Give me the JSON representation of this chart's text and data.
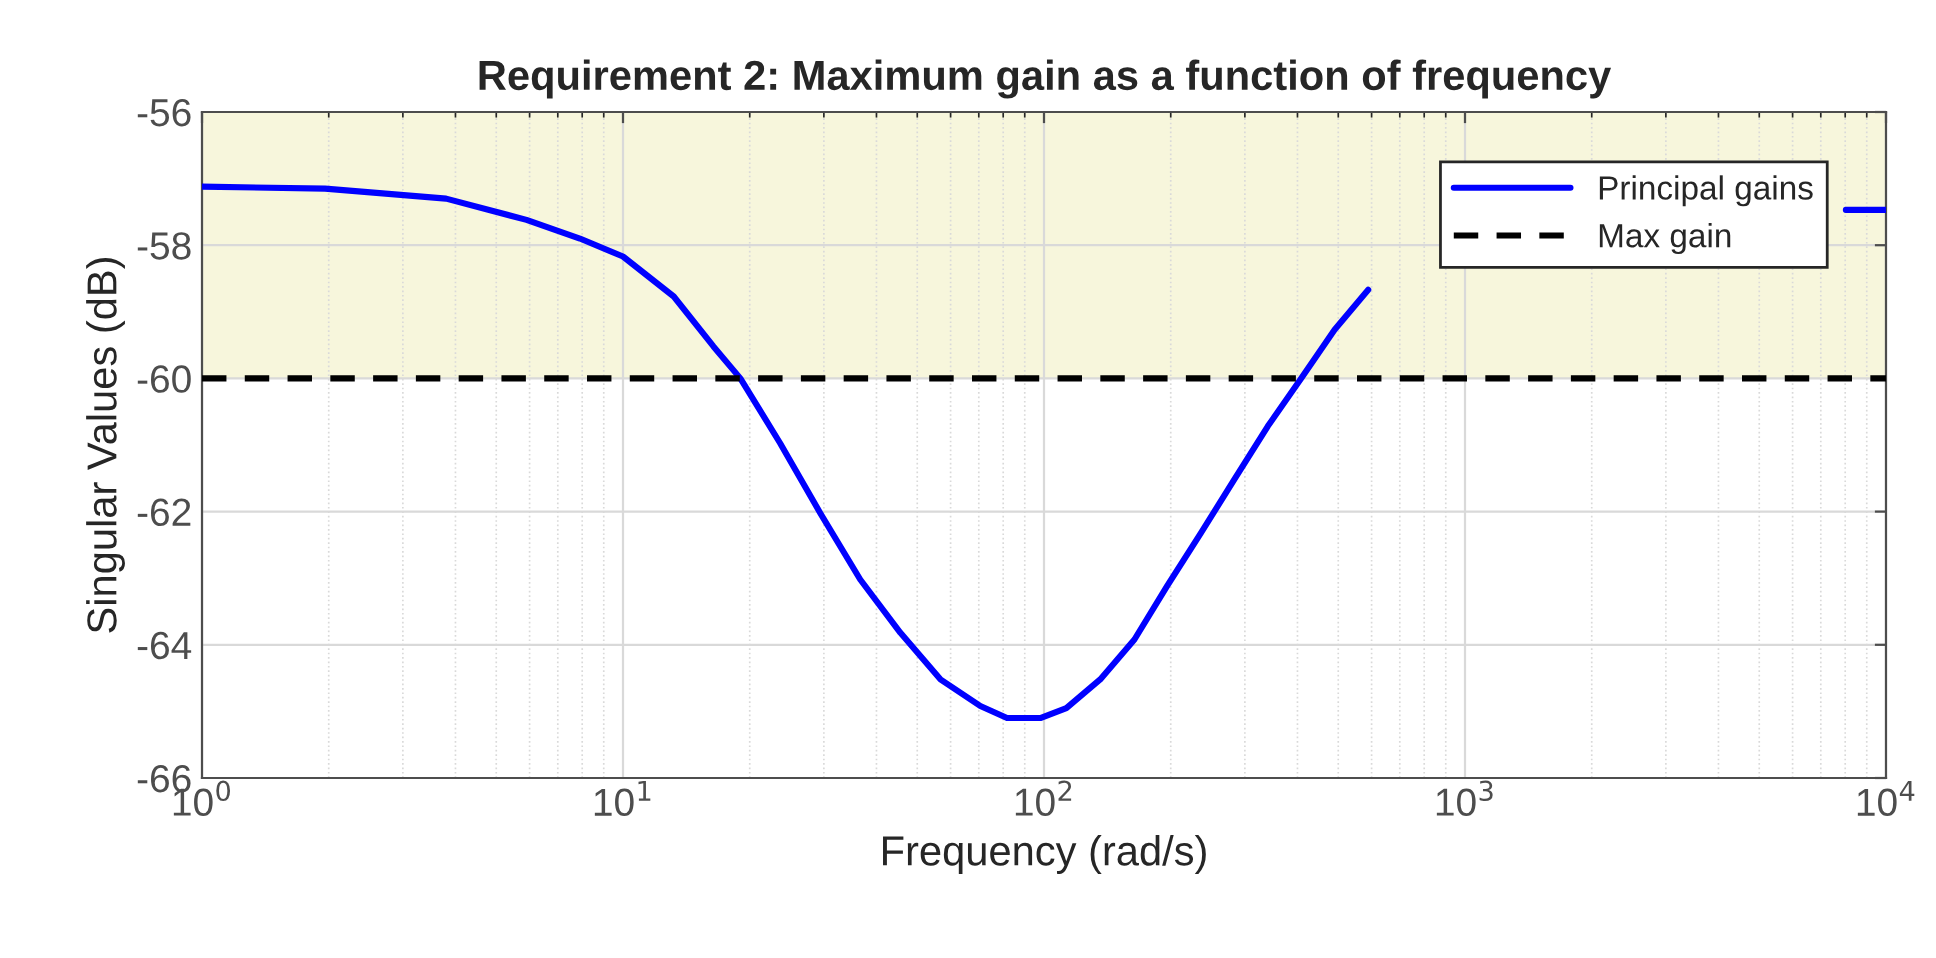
{
  "chart_data": {
    "type": "line",
    "title": "Requirement 2: Maximum gain as a function of frequency",
    "xlabel": "Frequency (rad/s)",
    "ylabel": "Singular Values (dB)",
    "series": [
      {
        "name": "Principal gains",
        "color": "#0000ff",
        "x": [
          1,
          1.96,
          3.8,
          5.9,
          7.9,
          10,
          13.2,
          16.4,
          19,
          23.6,
          29.4,
          36.6,
          45.6,
          56.8,
          70.6,
          81.7,
          98,
          113,
          136,
          164,
          196,
          236,
          283,
          340,
          408,
          490,
          589,
          2000,
          8030,
          10000
        ],
        "values": [
          -57.12,
          -57.15,
          -57.3,
          -57.62,
          -57.9,
          -58.17,
          -58.77,
          -59.52,
          -60.0,
          -60.97,
          -62.02,
          -63.02,
          -63.82,
          -64.52,
          -64.92,
          -65.1,
          -65.1,
          -64.95,
          -64.52,
          -63.92,
          -63.12,
          -62.32,
          -61.52,
          -60.72,
          -60.0,
          -59.27,
          -58.67,
          null,
          -57.47,
          -57.47
        ]
      }
    ],
    "ref_lines": [
      {
        "axis": "y",
        "value": -60,
        "label": "Max gain",
        "color": "#000000",
        "line_style": "dashed"
      }
    ],
    "bands": [
      {
        "axis": "y",
        "from": -60,
        "to": -56,
        "color": "#f7f6dc"
      }
    ],
    "log": "x",
    "xlim": [
      1,
      10000
    ],
    "xticks": [
      {
        "value": 1,
        "label": "10$^{0}$"
      },
      {
        "value": 10,
        "label": "10$^{1}$"
      },
      {
        "value": 100,
        "label": "10$^{2}$"
      },
      {
        "value": 1000,
        "label": "10$^{3}$"
      },
      {
        "value": 10000,
        "label": "10$^{4}$"
      }
    ],
    "ylim": [
      -66,
      -56
    ],
    "yticks": [
      -66,
      -64,
      -62,
      -60,
      -58,
      -56
    ],
    "grid": true,
    "legend": "top right",
    "line_style": "solid",
    "marker": "none"
  }
}
